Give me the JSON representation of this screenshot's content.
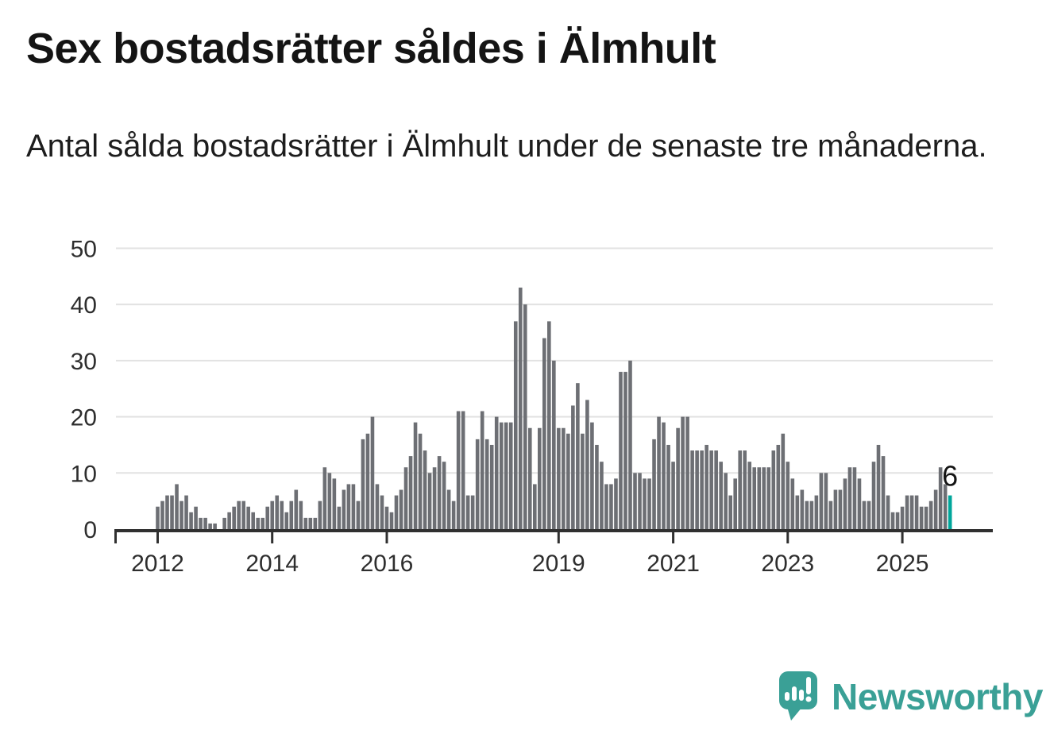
{
  "header": {
    "title": "Sex bostadsrätter såldes i Älmhult",
    "subtitle": "Antal sålda bostadsrätter i Älmhult under de senaste tre månaderna."
  },
  "chart_data": {
    "type": "bar",
    "title": "Sex bostadsrätter såldes i Älmhult",
    "xlabel": "",
    "ylabel": "",
    "ylim": [
      0,
      50
    ],
    "y_ticks": [
      0,
      10,
      20,
      30,
      40,
      50
    ],
    "x_tick_years": [
      2012,
      2014,
      2016,
      2019,
      2021,
      2023,
      2025
    ],
    "grid": true,
    "legend": "none",
    "bar_color": "#6d6f74",
    "highlight_color": "#00a69b",
    "highlight_label": "6",
    "label_color": "#141414",
    "axis_color": "#303030",
    "tick_label_color": "#2e2e2e",
    "gridline_color": "#e2e2e2",
    "start_year": 2012,
    "series": [
      {
        "year": 2012,
        "values": [
          4,
          5,
          6,
          6,
          8,
          5,
          6,
          3,
          4,
          2,
          2,
          1
        ]
      },
      {
        "year": 2013,
        "values": [
          1,
          0,
          2,
          3,
          4,
          5,
          5,
          4,
          3,
          2,
          2,
          4
        ]
      },
      {
        "year": 2014,
        "values": [
          5,
          6,
          5,
          3,
          5,
          7,
          5,
          2,
          2,
          2,
          5,
          11
        ]
      },
      {
        "year": 2015,
        "values": [
          10,
          9,
          4,
          7,
          8,
          8,
          5,
          16,
          17,
          20,
          8,
          6
        ]
      },
      {
        "year": 2016,
        "values": [
          4,
          3,
          6,
          7,
          11,
          13,
          19,
          17,
          14,
          10,
          11,
          13
        ]
      },
      {
        "year": 2017,
        "values": [
          12,
          7,
          5,
          21,
          21,
          6,
          6,
          16,
          21,
          16,
          15,
          20
        ]
      },
      {
        "year": 2018,
        "values": [
          19,
          19,
          19,
          37,
          43,
          40,
          18,
          8,
          18,
          34,
          37,
          30
        ]
      },
      {
        "year": 2019,
        "values": [
          18,
          18,
          17,
          22,
          26,
          17,
          23,
          19,
          15,
          12,
          8,
          8
        ]
      },
      {
        "year": 2020,
        "values": [
          9,
          28,
          28,
          30,
          10,
          10,
          9,
          9,
          16,
          20,
          19,
          15
        ]
      },
      {
        "year": 2021,
        "values": [
          12,
          18,
          20,
          20,
          14,
          14,
          14,
          15,
          14,
          14,
          12,
          10
        ]
      },
      {
        "year": 2022,
        "values": [
          6,
          9,
          14,
          14,
          12,
          11,
          11,
          11,
          11,
          14,
          15,
          17
        ]
      },
      {
        "year": 2023,
        "values": [
          12,
          9,
          6,
          7,
          5,
          5,
          6,
          10,
          10,
          5,
          7,
          7
        ]
      },
      {
        "year": 2024,
        "values": [
          9,
          11,
          11,
          9,
          5,
          5,
          12,
          15,
          13,
          6,
          3,
          3
        ]
      },
      {
        "year": 2025,
        "values": [
          4,
          6,
          6,
          6,
          4,
          4,
          5,
          7,
          11,
          8,
          6
        ]
      }
    ]
  },
  "footer": {
    "brand": "Newsworthy",
    "brand_color": "#3aa096"
  }
}
